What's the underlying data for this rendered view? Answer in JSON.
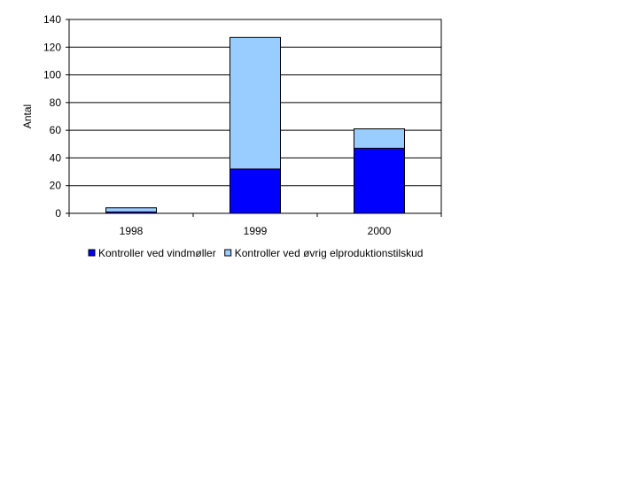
{
  "chart_data": {
    "type": "bar",
    "stacked": true,
    "categories": [
      "1998",
      "1999",
      "2000"
    ],
    "series": [
      {
        "name": "Kontroller ved vindmøller",
        "values": [
          1,
          32,
          47
        ],
        "color": "#0000FF"
      },
      {
        "name": "Kontroller ved øvrig elproduktionstilskud",
        "values": [
          3,
          95,
          14
        ],
        "color": "#99CCFF"
      }
    ],
    "title": "",
    "xlabel": "",
    "ylabel": "Antal",
    "ylim": [
      0,
      140
    ],
    "yticks": [
      "0",
      "20",
      "40",
      "60",
      "80",
      "100",
      "120",
      "140"
    ],
    "grid": true,
    "legend_position": "bottom"
  }
}
